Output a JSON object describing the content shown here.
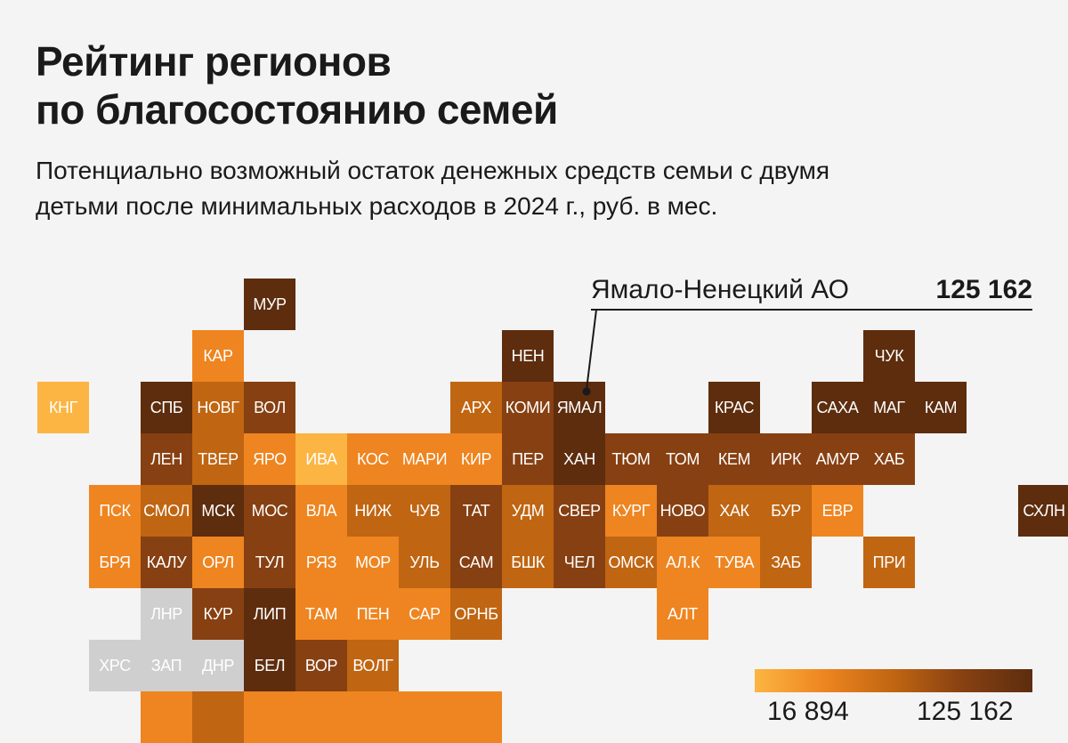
{
  "title_lines": [
    "Рейтинг регионов",
    "по благосостоянию семей"
  ],
  "subtitle_lines": [
    "Потенциально возможный остаток денежных средств семьи с двумя",
    "детьми после минимальных расходов в 2024 г., руб. в мес."
  ],
  "callout": {
    "region": "Ямало-Ненецкий АО",
    "value": "125 162"
  },
  "legend": {
    "min": "16 894",
    "max": "125 162"
  },
  "colors": {
    "background": "#f4f4f4",
    "no_data": "#cfcfcf",
    "scale": [
      "#fcb542",
      "#ee8520",
      "#c06512",
      "#874012",
      "#5d2d0e"
    ]
  },
  "chart_data": {
    "type": "heatmap",
    "title": "Рейтинг регионов по благосостоянию семей",
    "subtitle": "Потенциально возможный остаток денежных средств семьи с двумя детьми после минимальных расходов в 2024 г., руб. в мес.",
    "legend_range": [
      16894,
      125162
    ],
    "color_scale": "sequential, light orange (low) to dark brown (high)",
    "annotation": {
      "label": "Ямало-Ненецкий АО",
      "value": 125162,
      "tile": "ЯМАЛ"
    },
    "regions": [
      {
        "label": "МУР",
        "row": 0,
        "col": 4,
        "level": 4
      },
      {
        "label": "КАР",
        "row": 1,
        "col": 3,
        "level": 1
      },
      {
        "label": "НЕН",
        "row": 1,
        "col": 9,
        "level": 4
      },
      {
        "label": "ЧУК",
        "row": 1,
        "col": 16,
        "level": 4
      },
      {
        "label": "КНГ",
        "row": 2,
        "col": 0,
        "level": 0
      },
      {
        "label": "СПБ",
        "row": 2,
        "col": 2,
        "level": 4
      },
      {
        "label": "НОВГ",
        "row": 2,
        "col": 3,
        "level": 2
      },
      {
        "label": "ВОЛ",
        "row": 2,
        "col": 4,
        "level": 3
      },
      {
        "label": "АРХ",
        "row": 2,
        "col": 8,
        "level": 2
      },
      {
        "label": "КОМИ",
        "row": 2,
        "col": 9,
        "level": 3
      },
      {
        "label": "ЯМАЛ",
        "row": 2,
        "col": 10,
        "level": 4
      },
      {
        "label": "КРАС",
        "row": 2,
        "col": 13,
        "level": 4
      },
      {
        "label": "САХА",
        "row": 2,
        "col": 15,
        "level": 4
      },
      {
        "label": "МАГ",
        "row": 2,
        "col": 16,
        "level": 4
      },
      {
        "label": "КАМ",
        "row": 2,
        "col": 17,
        "level": 4
      },
      {
        "label": "ЛЕН",
        "row": 3,
        "col": 2,
        "level": 3
      },
      {
        "label": "ТВЕР",
        "row": 3,
        "col": 3,
        "level": 2
      },
      {
        "label": "ЯРО",
        "row": 3,
        "col": 4,
        "level": 1
      },
      {
        "label": "ИВА",
        "row": 3,
        "col": 5,
        "level": 0
      },
      {
        "label": "КОС",
        "row": 3,
        "col": 6,
        "level": 1
      },
      {
        "label": "МАРИ",
        "row": 3,
        "col": 7,
        "level": 1
      },
      {
        "label": "КИР",
        "row": 3,
        "col": 8,
        "level": 1
      },
      {
        "label": "ПЕР",
        "row": 3,
        "col": 9,
        "level": 3
      },
      {
        "label": "ХАН",
        "row": 3,
        "col": 10,
        "level": 4
      },
      {
        "label": "ТЮМ",
        "row": 3,
        "col": 11,
        "level": 3
      },
      {
        "label": "ТОМ",
        "row": 3,
        "col": 12,
        "level": 3
      },
      {
        "label": "КЕМ",
        "row": 3,
        "col": 13,
        "level": 3
      },
      {
        "label": "ИРК",
        "row": 3,
        "col": 14,
        "level": 3
      },
      {
        "label": "АМУР",
        "row": 3,
        "col": 15,
        "level": 3
      },
      {
        "label": "ХАБ",
        "row": 3,
        "col": 16,
        "level": 3
      },
      {
        "label": "ПСК",
        "row": 4,
        "col": 1,
        "level": 1
      },
      {
        "label": "СМОЛ",
        "row": 4,
        "col": 2,
        "level": 2
      },
      {
        "label": "МСК",
        "row": 4,
        "col": 3,
        "level": 4
      },
      {
        "label": "МОС",
        "row": 4,
        "col": 4,
        "level": 3
      },
      {
        "label": "ВЛА",
        "row": 4,
        "col": 5,
        "level": 1
      },
      {
        "label": "НИЖ",
        "row": 4,
        "col": 6,
        "level": 2
      },
      {
        "label": "ЧУВ",
        "row": 4,
        "col": 7,
        "level": 2
      },
      {
        "label": "ТАТ",
        "row": 4,
        "col": 8,
        "level": 3
      },
      {
        "label": "УДМ",
        "row": 4,
        "col": 9,
        "level": 2
      },
      {
        "label": "СВЕР",
        "row": 4,
        "col": 10,
        "level": 3
      },
      {
        "label": "КУРГ",
        "row": 4,
        "col": 11,
        "level": 1
      },
      {
        "label": "НОВО",
        "row": 4,
        "col": 12,
        "level": 3
      },
      {
        "label": "ХАК",
        "row": 4,
        "col": 13,
        "level": 2
      },
      {
        "label": "БУР",
        "row": 4,
        "col": 14,
        "level": 2
      },
      {
        "label": "ЕВР",
        "row": 4,
        "col": 15,
        "level": 1
      },
      {
        "label": "СХЛН",
        "row": 4,
        "col": 19,
        "level": 4
      },
      {
        "label": "БРЯ",
        "row": 5,
        "col": 1,
        "level": 1
      },
      {
        "label": "КАЛУ",
        "row": 5,
        "col": 2,
        "level": 3
      },
      {
        "label": "ОРЛ",
        "row": 5,
        "col": 3,
        "level": 1
      },
      {
        "label": "ТУЛ",
        "row": 5,
        "col": 4,
        "level": 3
      },
      {
        "label": "РЯЗ",
        "row": 5,
        "col": 5,
        "level": 1
      },
      {
        "label": "МОР",
        "row": 5,
        "col": 6,
        "level": 1
      },
      {
        "label": "УЛЬ",
        "row": 5,
        "col": 7,
        "level": 2
      },
      {
        "label": "САМ",
        "row": 5,
        "col": 8,
        "level": 3
      },
      {
        "label": "БШК",
        "row": 5,
        "col": 9,
        "level": 2
      },
      {
        "label": "ЧЕЛ",
        "row": 5,
        "col": 10,
        "level": 3
      },
      {
        "label": "ОМСК",
        "row": 5,
        "col": 11,
        "level": 2
      },
      {
        "label": "АЛ.К",
        "row": 5,
        "col": 12,
        "level": 1
      },
      {
        "label": "ТУВА",
        "row": 5,
        "col": 13,
        "level": 1
      },
      {
        "label": "ЗАБ",
        "row": 5,
        "col": 14,
        "level": 2
      },
      {
        "label": "ПРИ",
        "row": 5,
        "col": 16,
        "level": 2
      },
      {
        "label": "ЛНР",
        "row": 6,
        "col": 2,
        "level": -1
      },
      {
        "label": "КУР",
        "row": 6,
        "col": 3,
        "level": 3
      },
      {
        "label": "ЛИП",
        "row": 6,
        "col": 4,
        "level": 4
      },
      {
        "label": "ТАМ",
        "row": 6,
        "col": 5,
        "level": 1
      },
      {
        "label": "ПЕН",
        "row": 6,
        "col": 6,
        "level": 1
      },
      {
        "label": "САР",
        "row": 6,
        "col": 7,
        "level": 1
      },
      {
        "label": "ОРНБ",
        "row": 6,
        "col": 8,
        "level": 2
      },
      {
        "label": "АЛТ",
        "row": 6,
        "col": 12,
        "level": 1
      },
      {
        "label": "ХРС",
        "row": 7,
        "col": 1,
        "level": -1
      },
      {
        "label": "ЗАП",
        "row": 7,
        "col": 2,
        "level": -1
      },
      {
        "label": "ДНР",
        "row": 7,
        "col": 3,
        "level": -1
      },
      {
        "label": "БЕЛ",
        "row": 7,
        "col": 4,
        "level": 4
      },
      {
        "label": "ВОР",
        "row": 7,
        "col": 5,
        "level": 3
      },
      {
        "label": "ВОЛГ",
        "row": 7,
        "col": 6,
        "level": 2
      },
      {
        "label": "",
        "row": 8,
        "col": 2,
        "level": 1
      },
      {
        "label": "",
        "row": 8,
        "col": 3,
        "level": 2
      },
      {
        "label": "",
        "row": 8,
        "col": 4,
        "level": 1
      },
      {
        "label": "",
        "row": 8,
        "col": 5,
        "level": 1
      },
      {
        "label": "",
        "row": 8,
        "col": 6,
        "level": 1
      },
      {
        "label": "",
        "row": 8,
        "col": 7,
        "level": 1
      },
      {
        "label": "",
        "row": 8,
        "col": 8,
        "level": 1
      }
    ]
  }
}
